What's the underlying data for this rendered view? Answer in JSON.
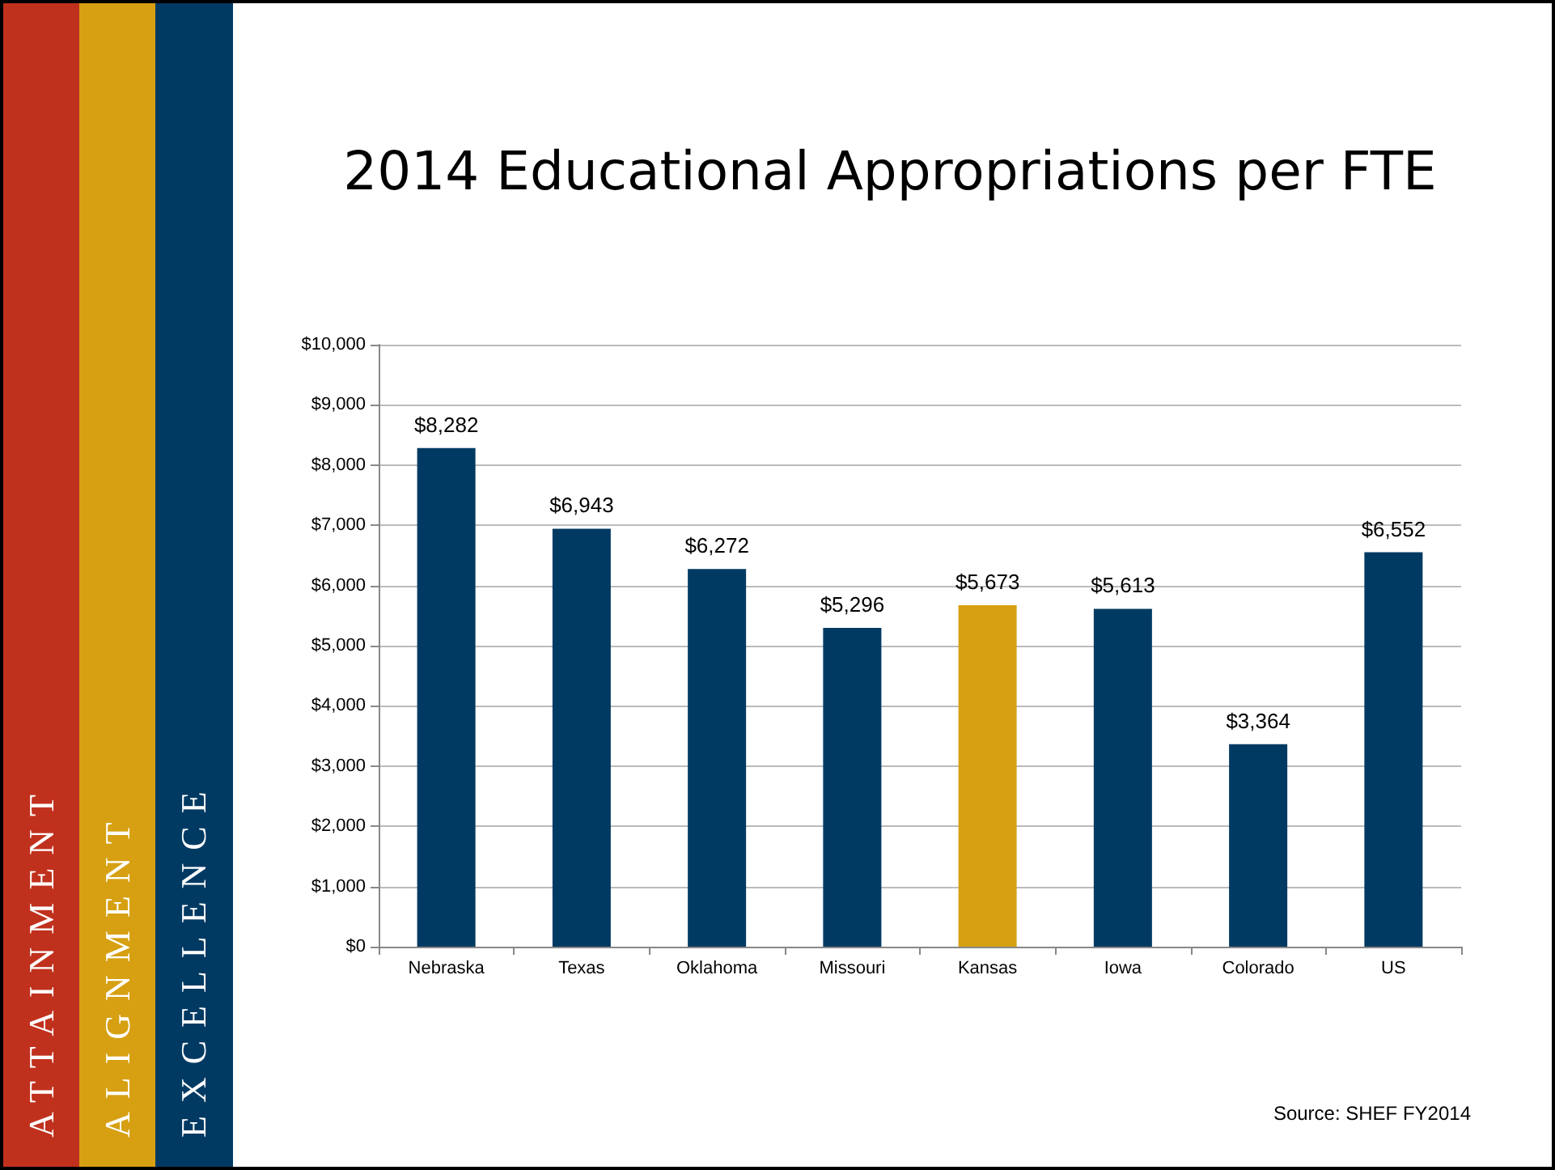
{
  "chart_data": {
    "type": "bar",
    "title": "2014 Educational Appropriations per FTE",
    "categories": [
      "Nebraska",
      "Texas",
      "Oklahoma",
      "Missouri",
      "Kansas",
      "Iowa",
      "Colorado",
      "US"
    ],
    "values": [
      8282,
      6943,
      6272,
      5296,
      5673,
      5613,
      3364,
      6552
    ],
    "colors": [
      "#003a63",
      "#003a63",
      "#003a63",
      "#003a63",
      "#d6a012",
      "#003a63",
      "#003a63",
      "#003a63"
    ],
    "value_labels": [
      "$8,282",
      "$6,943",
      "$6,272",
      "$5,296",
      "$5,673",
      "$5,613",
      "$3,364",
      "$6,552"
    ],
    "ylim": [
      0,
      10000
    ],
    "yticks": [
      {
        "value": 0,
        "label": "$0"
      },
      {
        "value": 1000,
        "label": "$1,000"
      },
      {
        "value": 2000,
        "label": "$2,000"
      },
      {
        "value": 3000,
        "label": "$3,000"
      },
      {
        "value": 4000,
        "label": "$4,000"
      },
      {
        "value": 5000,
        "label": "$5,000"
      },
      {
        "value": 6000,
        "label": "$6,000"
      },
      {
        "value": 7000,
        "label": "$7,000"
      },
      {
        "value": 8000,
        "label": "$8,000"
      },
      {
        "value": 9000,
        "label": "$9,000"
      },
      {
        "value": 10000,
        "label": "$10,000"
      }
    ],
    "grid": "y",
    "annotations": [
      "ATTAINMENT",
      "ALIGNMENT",
      "EXCELLENCE",
      "Source: SHEF FY2014"
    ]
  }
}
